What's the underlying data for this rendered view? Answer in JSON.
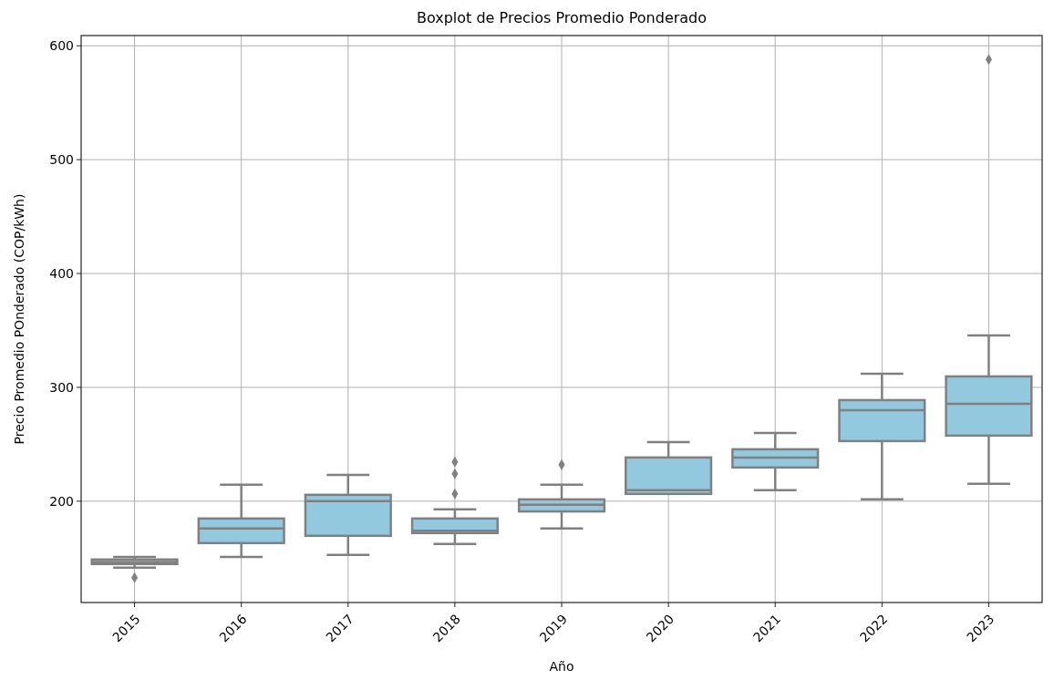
{
  "chart_data": {
    "type": "box",
    "title": "Boxplot de Precios Promedio Ponderado",
    "xlabel": "Año",
    "ylabel": "Precio Promedio POnderado (COP/kWh)",
    "categories": [
      "2015",
      "2016",
      "2017",
      "2018",
      "2019",
      "2020",
      "2021",
      "2022",
      "2023"
    ],
    "boxes": [
      {
        "low": 141.6,
        "q1": 144.8,
        "median": 146.5,
        "q3": 148.8,
        "high": 151,
        "outliers": [
          132.8
        ]
      },
      {
        "low": 151,
        "q1": 163.2,
        "median": 176,
        "q3": 184.8,
        "high": 214.4
      },
      {
        "low": 152.8,
        "q1": 169.6,
        "median": 200,
        "q3": 205.6,
        "high": 223
      },
      {
        "low": 162.4,
        "q1": 172,
        "median": 174,
        "q3": 184.8,
        "high": 192.8,
        "outliers": [
          206.4,
          224,
          234.4
        ]
      },
      {
        "low": 176,
        "q1": 191,
        "median": 196.8,
        "q3": 201.6,
        "high": 214.4,
        "outliers": [
          232
        ]
      },
      {
        "low": 206.4,
        "q1": 206.4,
        "median": 209.6,
        "q3": 238.4,
        "high": 252
      },
      {
        "low": 209.6,
        "q1": 229.6,
        "median": 238.4,
        "q3": 245.6,
        "high": 260
      },
      {
        "low": 201.6,
        "q1": 252.8,
        "median": 280,
        "q3": 288.8,
        "high": 312
      },
      {
        "low": 215.2,
        "q1": 257.6,
        "median": 285.6,
        "q3": 309.6,
        "high": 345.6,
        "outliers": [
          588
        ]
      }
    ],
    "color": "#93c9df",
    "ylim": [
      111,
      609
    ],
    "yticks": [
      200,
      300,
      400,
      500,
      600
    ],
    "grid": true,
    "marker": "diamond"
  }
}
